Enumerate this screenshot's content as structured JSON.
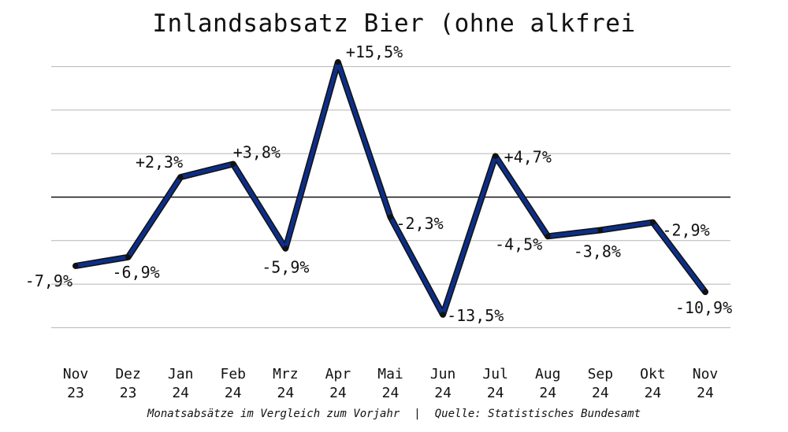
{
  "title": "Inlandsabsatz Bier (ohne alkfrei",
  "footer": {
    "left": "Monatsabsätze im Vergleich zum Vorjahr",
    "separator": "|",
    "right": "Quelle: Statistisches Bundesamt"
  },
  "colors": {
    "line": "#0d2e86",
    "outline": "#111111",
    "grid": "#b5b5b5",
    "zero": "#111111"
  },
  "chart_data": {
    "type": "line",
    "title": "Inlandsabsatz Bier (ohne alkfrei",
    "xlabel": "",
    "ylabel": "",
    "ylim": [
      -17.5,
      17.5
    ],
    "grid": true,
    "categories": [
      [
        "Nov",
        "23"
      ],
      [
        "Dez",
        "23"
      ],
      [
        "Jan",
        "24"
      ],
      [
        "Feb",
        "24"
      ],
      [
        "Mrz",
        "24"
      ],
      [
        "Apr",
        "24"
      ],
      [
        "Mai",
        "24"
      ],
      [
        "Jun",
        "24"
      ],
      [
        "Jul",
        "24"
      ],
      [
        "Aug",
        "24"
      ],
      [
        "Sep",
        "24"
      ],
      [
        "Okt",
        "24"
      ],
      [
        "Nov",
        "24"
      ]
    ],
    "series": [
      {
        "values": [
          -7.9,
          -6.9,
          2.3,
          3.8,
          -5.9,
          15.5,
          -2.3,
          -13.5,
          4.7,
          -4.5,
          -3.8,
          -2.9,
          -10.9
        ],
        "labels": [
          "-7,9%",
          "-6,9%",
          "+2,3%",
          "+3,8%",
          "-5,9%",
          "+15,5%",
          "-2,3%",
          "-13,5%",
          "+4,7%",
          "-4,5%",
          "-3,8%",
          "-2,9%",
          "-10,9%"
        ]
      }
    ]
  }
}
